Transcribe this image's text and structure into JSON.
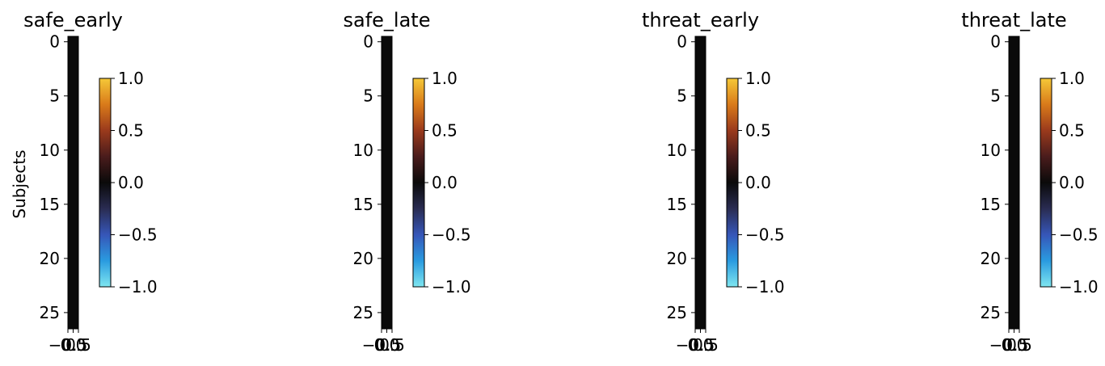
{
  "figure": {
    "ylabel": "Subjects",
    "cmap": "diverging: cyan-blue-black-red-yellow",
    "colorbar_colors": [
      "#7fe6f0",
      "#2a9be0",
      "#3656b8",
      "#2a2c52",
      "#0a0a0a",
      "#4a1c1c",
      "#9a3a1c",
      "#d97a1a",
      "#f5c838"
    ]
  },
  "chart_data": [
    {
      "type": "heatmap",
      "title": "safe_early",
      "ylabel": "Subjects",
      "ylim": [
        26.5,
        -0.5
      ],
      "xlim": [
        -0.5,
        0.5
      ],
      "yticks": [
        "0",
        "5",
        "10",
        "15",
        "20",
        "25"
      ],
      "xticks": [
        "−0.5",
        "0.0",
        "0.5"
      ],
      "values": [
        0,
        0,
        0,
        0,
        0,
        0,
        0,
        0,
        0,
        0,
        0,
        0,
        0,
        0,
        0,
        0,
        0,
        0,
        0,
        0,
        0,
        0,
        0,
        0,
        0,
        0,
        0
      ],
      "colorbar": {
        "range": [
          -1.0,
          1.0
        ],
        "ticks": [
          "1.0",
          "0.5",
          "0.0",
          "−0.5",
          "−1.0"
        ]
      }
    },
    {
      "type": "heatmap",
      "title": "safe_late",
      "ylabel": "",
      "ylim": [
        26.5,
        -0.5
      ],
      "xlim": [
        -0.5,
        0.5
      ],
      "yticks": [
        "0",
        "5",
        "10",
        "15",
        "20",
        "25"
      ],
      "xticks": [
        "−0.5",
        "0.0",
        "0.5"
      ],
      "values": [
        0,
        0,
        0,
        0,
        0,
        0,
        0,
        0,
        0,
        0,
        0,
        0,
        0,
        0,
        0,
        0,
        0,
        0,
        0,
        0,
        0,
        0,
        0,
        0,
        0,
        0,
        0
      ],
      "colorbar": {
        "range": [
          -1.0,
          1.0
        ],
        "ticks": [
          "1.0",
          "0.5",
          "0.0",
          "−0.5",
          "−1.0"
        ]
      }
    },
    {
      "type": "heatmap",
      "title": "threat_early",
      "ylabel": "",
      "ylim": [
        26.5,
        -0.5
      ],
      "xlim": [
        -0.5,
        0.5
      ],
      "yticks": [
        "0",
        "5",
        "10",
        "15",
        "20",
        "25"
      ],
      "xticks": [
        "−0.5",
        "0.0",
        "0.5"
      ],
      "values": [
        0,
        0,
        0,
        0,
        0,
        0,
        0,
        0,
        0,
        0,
        0,
        0,
        0,
        0,
        0,
        0,
        0,
        0,
        0,
        0,
        0,
        0,
        0,
        0,
        0,
        0,
        0
      ],
      "colorbar": {
        "range": [
          -1.0,
          1.0
        ],
        "ticks": [
          "1.0",
          "0.5",
          "0.0",
          "−0.5",
          "−1.0"
        ]
      }
    },
    {
      "type": "heatmap",
      "title": "threat_late",
      "ylabel": "",
      "ylim": [
        26.5,
        -0.5
      ],
      "xlim": [
        -0.5,
        0.5
      ],
      "yticks": [
        "0",
        "5",
        "10",
        "15",
        "20",
        "25"
      ],
      "xticks": [
        "−0.5",
        "0.0",
        "0.5"
      ],
      "values": [
        0,
        0,
        0,
        0,
        0,
        0,
        0,
        0,
        0,
        0,
        0,
        0,
        0,
        0,
        0,
        0,
        0,
        0,
        0,
        0,
        0,
        0,
        0,
        0,
        0,
        0,
        0
      ],
      "colorbar": {
        "range": [
          -1.0,
          1.0
        ],
        "ticks": [
          "1.0",
          "0.5",
          "0.0",
          "−0.5",
          "−1.0"
        ]
      }
    }
  ]
}
